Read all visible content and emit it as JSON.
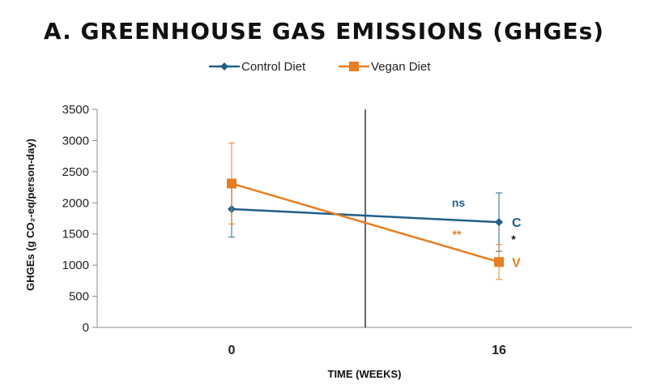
{
  "chart_data": {
    "type": "line",
    "title": "A. GREENHOUSE GAS EMISSIONS (GHGEs)",
    "xlabel": "TIME (WEEKS)",
    "ylabel": "GHGEs (g CO₂-eq/person-day)",
    "ylim": [
      0,
      3500
    ],
    "yticks": [
      0,
      500,
      1000,
      1500,
      2000,
      2500,
      3000,
      3500
    ],
    "categories": [
      "0",
      "16"
    ],
    "grid": false,
    "legend_position": "top",
    "series": [
      {
        "name": "Control Diet",
        "color": "#1f5f8b",
        "marker": "diamond",
        "values": [
          1900,
          1690
        ],
        "error": [
          450,
          470
        ],
        "end_label": "C"
      },
      {
        "name": "Vegan Diet",
        "color": "#e67e22",
        "marker": "square",
        "values": [
          2310,
          1050
        ],
        "error": [
          650,
          280
        ],
        "end_label": "V"
      }
    ],
    "annotations": [
      {
        "text": "ns",
        "color": "#1f5f8b"
      },
      {
        "text": "**",
        "color": "#e67e22"
      },
      {
        "text": "*",
        "color": "#111111"
      }
    ],
    "divider_line": true
  }
}
